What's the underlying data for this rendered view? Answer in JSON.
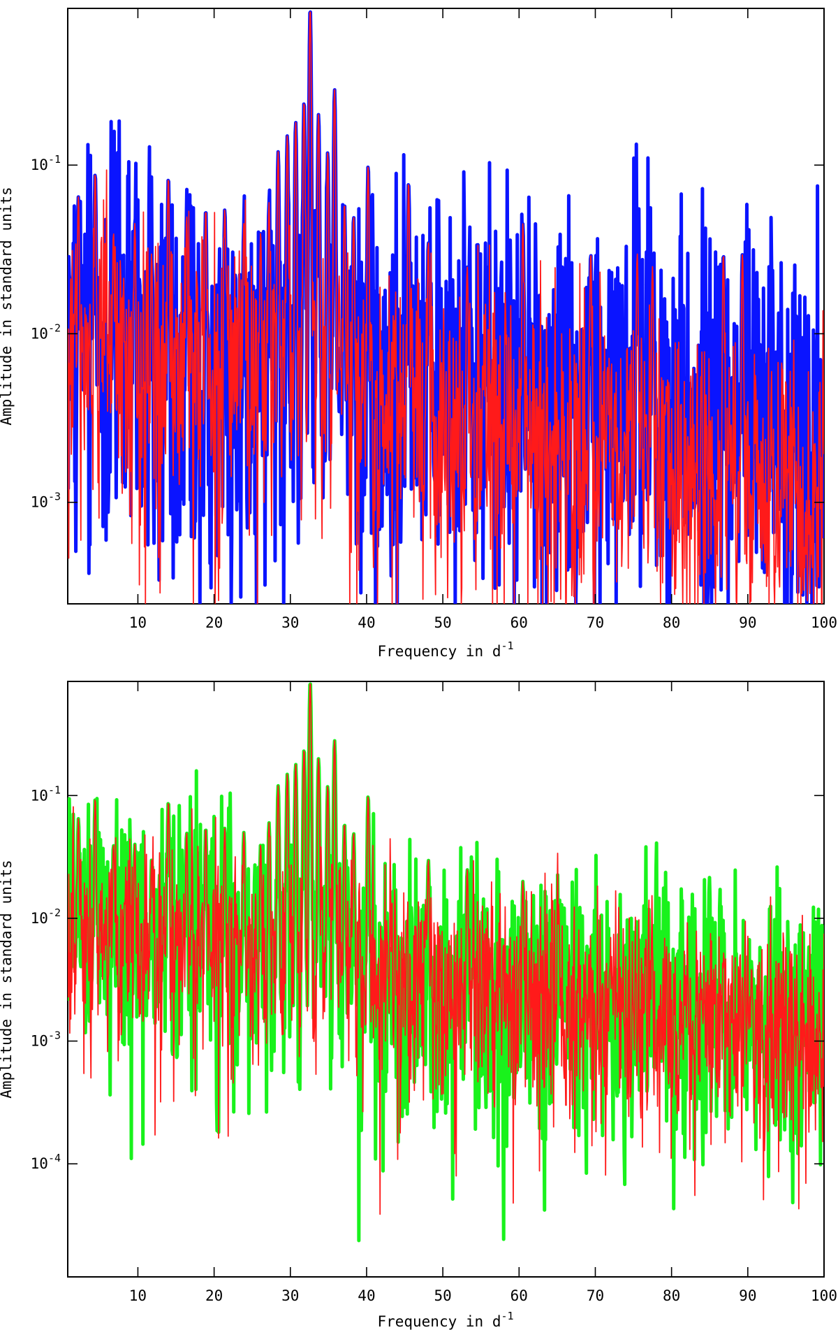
{
  "chart_data": [
    {
      "type": "line",
      "yscale": "log",
      "xlim": [
        0.8,
        100
      ],
      "ylim": [
        0.00025,
        0.85
      ],
      "xticks": [
        10,
        20,
        30,
        40,
        50,
        60,
        70,
        80,
        90,
        100
      ],
      "yticks": [
        {
          "value": 0.1,
          "base": "10",
          "exp": "-1"
        },
        {
          "value": 0.01,
          "base": "10",
          "exp": "-2"
        },
        {
          "value": 0.001,
          "base": "10",
          "exp": "-3"
        }
      ],
      "xlabel_main": "Frequency in d",
      "xlabel_sup": "-1",
      "ylabel": "Amplitude in standard units",
      "series": [
        {
          "name": "blue spectrum",
          "color": "#0a14ff",
          "width": 5,
          "noise": [
            [
              0,
              0.009
            ],
            [
              30,
              0.0055
            ],
            [
              45,
              0.0048
            ],
            [
              70,
              0.0045
            ],
            [
              100,
              0.0035
            ]
          ],
          "spread": 0.55
        },
        {
          "name": "red spectrum",
          "color": "#ff1a1a",
          "width": 1.8,
          "noise": [
            [
              0,
              0.008
            ],
            [
              30,
              0.005
            ],
            [
              45,
              0.0034
            ],
            [
              70,
              0.0022
            ],
            [
              100,
              0.0011
            ]
          ],
          "spread": 0.42
        }
      ],
      "peaks": [
        [
          2.2,
          0.065
        ],
        [
          4.4,
          0.09
        ],
        [
          6.8,
          0.04
        ],
        [
          9.6,
          0.045
        ],
        [
          11.8,
          0.03
        ],
        [
          14.0,
          0.085
        ],
        [
          16.4,
          0.05
        ],
        [
          18.9,
          0.055
        ],
        [
          21.4,
          0.055
        ],
        [
          23.9,
          0.045
        ],
        [
          26.1,
          0.04
        ],
        [
          27.2,
          0.06
        ],
        [
          28.4,
          0.12
        ],
        [
          29.6,
          0.15
        ],
        [
          30.7,
          0.18
        ],
        [
          31.8,
          0.24
        ],
        [
          32.6,
          0.85
        ],
        [
          33.7,
          0.2
        ],
        [
          34.9,
          0.12
        ],
        [
          35.8,
          0.28
        ],
        [
          37.1,
          0.06
        ],
        [
          38.3,
          0.05
        ],
        [
          40.2,
          0.1
        ],
        [
          45.5,
          0.08
        ],
        [
          48.1,
          0.035
        ],
        [
          53.2,
          0.025
        ],
        [
          60.5,
          0.045
        ],
        [
          69.4,
          0.03
        ],
        [
          75.5,
          0.03
        ],
        [
          77.5,
          0.025
        ],
        [
          86.8,
          0.03
        ],
        [
          89.3,
          0.03
        ]
      ]
    },
    {
      "type": "line",
      "yscale": "log",
      "xlim": [
        0.8,
        100
      ],
      "ylim": [
        1.2e-05,
        0.85
      ],
      "xticks": [
        10,
        20,
        30,
        40,
        50,
        60,
        70,
        80,
        90,
        100
      ],
      "yticks": [
        {
          "value": 0.1,
          "base": "10",
          "exp": "-1"
        },
        {
          "value": 0.01,
          "base": "10",
          "exp": "-2"
        },
        {
          "value": 0.001,
          "base": "10",
          "exp": "-3"
        },
        {
          "value": 0.0001,
          "base": "10",
          "exp": "-4"
        }
      ],
      "xlabel_main": "Frequency in d",
      "xlabel_sup": "-1",
      "ylabel": "Amplitude in standard units",
      "series": [
        {
          "name": "green spectrum",
          "color": "#19f21c",
          "width": 5,
          "noise": [
            [
              0,
              0.0085
            ],
            [
              30,
              0.0052
            ],
            [
              45,
              0.0036
            ],
            [
              70,
              0.0024
            ],
            [
              100,
              0.0012
            ]
          ],
          "spread": 0.5
        },
        {
          "name": "red spectrum",
          "color": "#ff1a1a",
          "width": 1.8,
          "noise": [
            [
              0,
              0.008
            ],
            [
              30,
              0.005
            ],
            [
              45,
              0.0034
            ],
            [
              70,
              0.0022
            ],
            [
              100,
              0.0011
            ]
          ],
          "spread": 0.42
        }
      ],
      "peaks": [
        [
          2.2,
          0.065
        ],
        [
          4.4,
          0.095
        ],
        [
          6.8,
          0.04
        ],
        [
          9.6,
          0.04
        ],
        [
          11.8,
          0.03
        ],
        [
          14.0,
          0.09
        ],
        [
          16.4,
          0.05
        ],
        [
          18.9,
          0.055
        ],
        [
          21.4,
          0.055
        ],
        [
          23.9,
          0.05
        ],
        [
          26.1,
          0.04
        ],
        [
          27.2,
          0.06
        ],
        [
          28.4,
          0.12
        ],
        [
          29.6,
          0.15
        ],
        [
          30.7,
          0.18
        ],
        [
          31.8,
          0.24
        ],
        [
          32.6,
          0.85
        ],
        [
          33.7,
          0.2
        ],
        [
          34.9,
          0.12
        ],
        [
          35.8,
          0.28
        ],
        [
          37.1,
          0.06
        ],
        [
          38.3,
          0.05
        ],
        [
          40.2,
          0.1
        ],
        [
          48.1,
          0.03
        ],
        [
          53.2,
          0.025
        ],
        [
          60.5,
          0.02
        ],
        [
          65.2,
          0.012
        ],
        [
          90.5,
          0.004
        ]
      ]
    }
  ]
}
